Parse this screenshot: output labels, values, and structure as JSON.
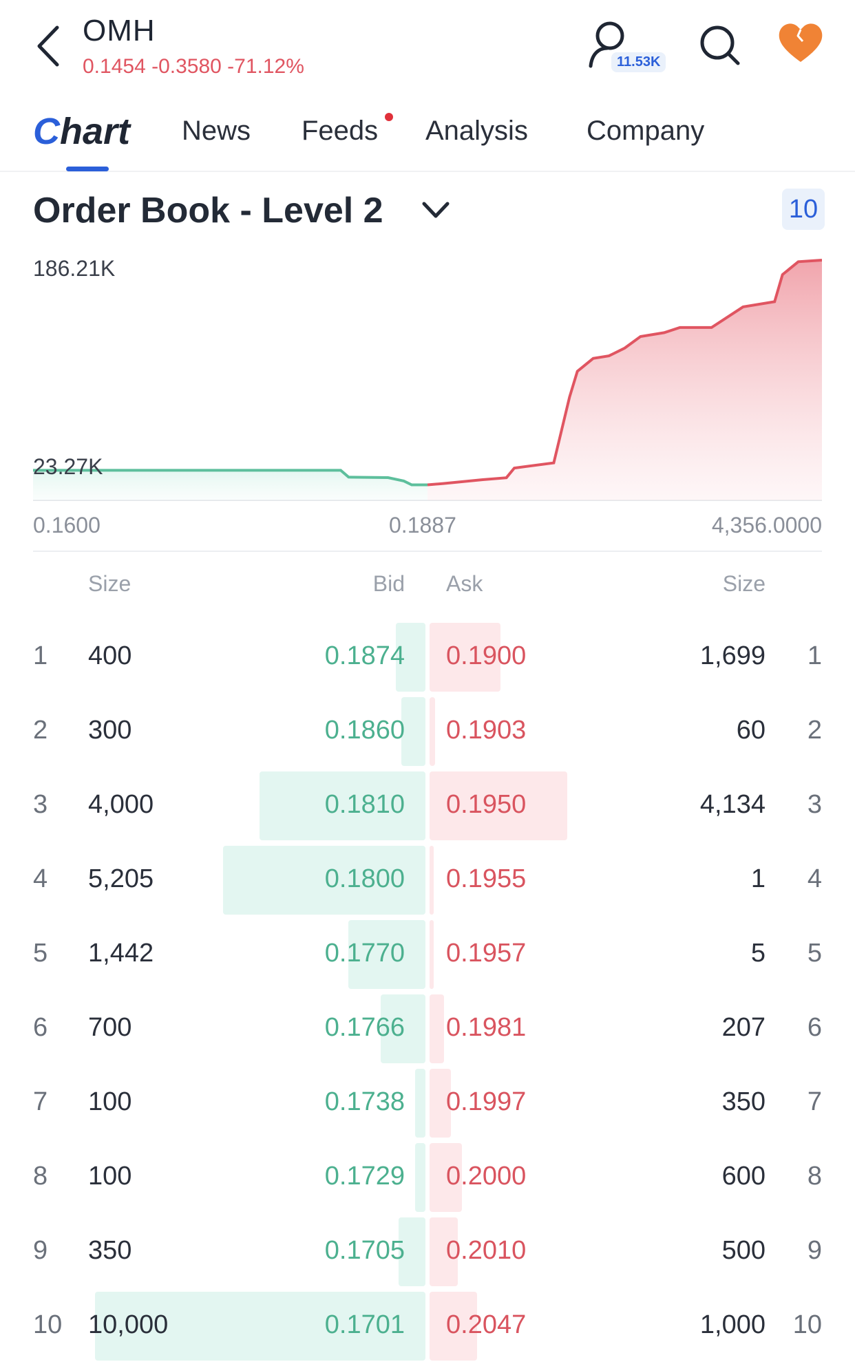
{
  "header": {
    "ticker": "OMH",
    "quote": "0.1454 -0.3580 -71.12%",
    "follow_count": "11.53K"
  },
  "tabs": [
    {
      "label": "Chart"
    },
    {
      "label": "News"
    },
    {
      "label": "Feeds"
    },
    {
      "label": "Analysis"
    },
    {
      "label": "Company"
    }
  ],
  "order_book": {
    "title": "Order Book - Level 2",
    "depth": "10",
    "headers": {
      "bid_size": "Size",
      "bid": "Bid",
      "ask": "Ask",
      "ask_size": "Size"
    },
    "rows": [
      {
        "level": "1",
        "bid_size": "400",
        "bid": "0.1874",
        "ask": "0.1900",
        "ask_size": "1,699"
      },
      {
        "level": "2",
        "bid_size": "300",
        "bid": "0.1860",
        "ask": "0.1903",
        "ask_size": "60"
      },
      {
        "level": "3",
        "bid_size": "4,000",
        "bid": "0.1810",
        "ask": "0.1950",
        "ask_size": "4,134"
      },
      {
        "level": "4",
        "bid_size": "5,205",
        "bid": "0.1800",
        "ask": "0.1955",
        "ask_size": "1"
      },
      {
        "level": "5",
        "bid_size": "1,442",
        "bid": "0.1770",
        "ask": "0.1957",
        "ask_size": "5"
      },
      {
        "level": "6",
        "bid_size": "700",
        "bid": "0.1766",
        "ask": "0.1981",
        "ask_size": "207"
      },
      {
        "level": "7",
        "bid_size": "100",
        "bid": "0.1738",
        "ask": "0.1997",
        "ask_size": "350"
      },
      {
        "level": "8",
        "bid_size": "100",
        "bid": "0.1729",
        "ask": "0.2000",
        "ask_size": "600"
      },
      {
        "level": "9",
        "bid_size": "350",
        "bid": "0.1705",
        "ask": "0.2010",
        "ask_size": "500"
      },
      {
        "level": "10",
        "bid_size": "10,000",
        "bid": "0.1701",
        "ask": "0.2047",
        "ask_size": "1,000"
      }
    ]
  },
  "chart_data": {
    "type": "area",
    "y_max_label": "186.21K",
    "y_min_label": "23.27K",
    "x_left_label": "0.1600",
    "x_mid_label": "0.1887",
    "x_right_label": "4,356.0000",
    "bid_color": "#5dbf9c",
    "ask_color": "#e05561",
    "bid_series": [
      {
        "x": 0.0,
        "y": 23.27
      },
      {
        "x": 0.39,
        "y": 23.27
      },
      {
        "x": 0.4,
        "y": 18.0
      },
      {
        "x": 0.45,
        "y": 17.6
      },
      {
        "x": 0.47,
        "y": 15.0
      },
      {
        "x": 0.48,
        "y": 12.0
      },
      {
        "x": 0.5,
        "y": 12.0
      }
    ],
    "ask_series": [
      {
        "x": 0.5,
        "y": 12.0
      },
      {
        "x": 0.52,
        "y": 13.0
      },
      {
        "x": 0.57,
        "y": 16.0
      },
      {
        "x": 0.6,
        "y": 17.5
      },
      {
        "x": 0.61,
        "y": 25.0
      },
      {
        "x": 0.66,
        "y": 29.0
      },
      {
        "x": 0.68,
        "y": 80.0
      },
      {
        "x": 0.69,
        "y": 100.0
      },
      {
        "x": 0.71,
        "y": 110.0
      },
      {
        "x": 0.73,
        "y": 112.0
      },
      {
        "x": 0.75,
        "y": 118.0
      },
      {
        "x": 0.77,
        "y": 127.0
      },
      {
        "x": 0.8,
        "y": 130.0
      },
      {
        "x": 0.82,
        "y": 134.0
      },
      {
        "x": 0.86,
        "y": 134.0
      },
      {
        "x": 0.88,
        "y": 142.0
      },
      {
        "x": 0.9,
        "y": 150.0
      },
      {
        "x": 0.94,
        "y": 154.0
      },
      {
        "x": 0.95,
        "y": 175.0
      },
      {
        "x": 0.97,
        "y": 185.0
      },
      {
        "x": 1.0,
        "y": 186.21
      }
    ],
    "ylim": [
      0,
      186.21
    ]
  }
}
